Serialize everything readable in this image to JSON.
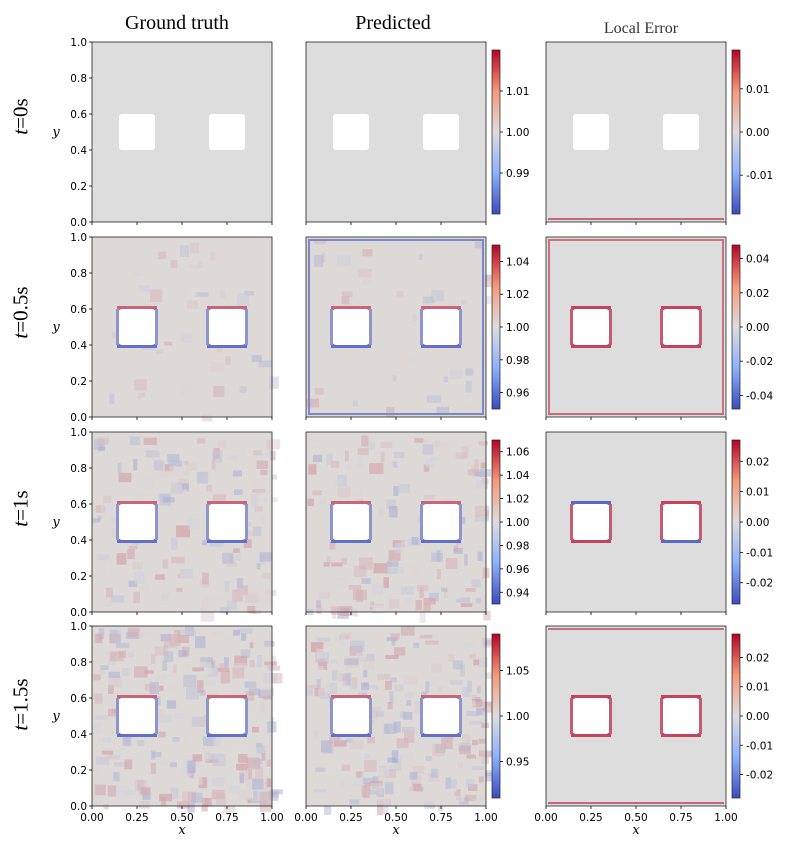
{
  "columns": {
    "ground_truth": "Ground truth",
    "predicted": "Predicted",
    "local_error": "Local Error"
  },
  "rows": [
    {
      "label": "t=0s",
      "t_var": "t",
      "t_value": "=0s"
    },
    {
      "label": "t=0.5s",
      "t_var": "t",
      "t_value": "=0.5s"
    },
    {
      "label": "t=1s",
      "t_var": "t",
      "t_value": "=1s"
    },
    {
      "label": "t=1.5s",
      "t_var": "t",
      "t_value": "=1.5s"
    }
  ],
  "axis_labels": {
    "x": "x",
    "y": "y"
  },
  "colors": {
    "low": "#3b4cc0",
    "mid": "#dddddd",
    "high": "#b40426",
    "hole": "#ffffff"
  },
  "chart_data": [
    {
      "type": "heatmap",
      "title": "Ground truth / Predicted, t=0s",
      "xlabel": "x",
      "ylabel": "y",
      "xlim": [
        0,
        1
      ],
      "ylim": [
        0,
        1
      ],
      "x_ticks": [
        "0.00",
        "0.25",
        "0.50",
        "0.75",
        "1.00"
      ],
      "y_ticks": [
        "0.0",
        "0.2",
        "0.4",
        "0.6",
        "0.8",
        "1.0"
      ],
      "obstacles": [
        {
          "x": [
            0.15,
            0.35
          ],
          "y": [
            0.4,
            0.6
          ]
        },
        {
          "x": [
            0.65,
            0.85
          ],
          "y": [
            0.4,
            0.6
          ]
        }
      ],
      "field_colorbar": {
        "range": [
          0.98,
          1.02
        ],
        "ticks": [
          "0.99",
          "1.00",
          "1.01"
        ]
      },
      "error_colorbar": {
        "range": [
          -0.019,
          0.019
        ],
        "ticks": [
          "-0.01",
          "0.00",
          "0.01"
        ]
      }
    },
    {
      "type": "heatmap",
      "title": "Ground truth / Predicted, t=0.5s",
      "xlabel": "x",
      "ylabel": "y",
      "xlim": [
        0,
        1
      ],
      "ylim": [
        0,
        1
      ],
      "x_ticks": [
        "0.00",
        "0.25",
        "0.50",
        "0.75",
        "1.00"
      ],
      "y_ticks": [
        "0.0",
        "0.2",
        "0.4",
        "0.6",
        "0.8",
        "1.0"
      ],
      "obstacles": [
        {
          "x": [
            0.15,
            0.35
          ],
          "y": [
            0.4,
            0.6
          ]
        },
        {
          "x": [
            0.65,
            0.85
          ],
          "y": [
            0.4,
            0.6
          ]
        }
      ],
      "field_colorbar": {
        "range": [
          0.95,
          1.05
        ],
        "ticks": [
          "0.96",
          "0.98",
          "1.00",
          "1.02",
          "1.04"
        ]
      },
      "error_colorbar": {
        "range": [
          -0.048,
          0.048
        ],
        "ticks": [
          "-0.04",
          "-0.02",
          "0.00",
          "0.02",
          "0.04"
        ]
      }
    },
    {
      "type": "heatmap",
      "title": "Ground truth / Predicted, t=1s",
      "xlabel": "x",
      "ylabel": "y",
      "xlim": [
        0,
        1
      ],
      "ylim": [
        0,
        1
      ],
      "x_ticks": [
        "0.00",
        "0.25",
        "0.50",
        "0.75",
        "1.00"
      ],
      "y_ticks": [
        "0.0",
        "0.2",
        "0.4",
        "0.6",
        "0.8",
        "1.0"
      ],
      "obstacles": [
        {
          "x": [
            0.15,
            0.35
          ],
          "y": [
            0.4,
            0.6
          ]
        },
        {
          "x": [
            0.65,
            0.85
          ],
          "y": [
            0.4,
            0.6
          ]
        }
      ],
      "field_colorbar": {
        "range": [
          0.93,
          1.07
        ],
        "ticks": [
          "0.94",
          "0.96",
          "0.98",
          "1.00",
          "1.02",
          "1.04",
          "1.06"
        ]
      },
      "error_colorbar": {
        "range": [
          -0.027,
          0.027
        ],
        "ticks": [
          "-0.02",
          "-0.01",
          "0.00",
          "0.01",
          "0.02"
        ]
      }
    },
    {
      "type": "heatmap",
      "title": "Ground truth / Predicted, t=1.5s",
      "xlabel": "x",
      "ylabel": "y",
      "xlim": [
        0,
        1
      ],
      "ylim": [
        0,
        1
      ],
      "x_ticks": [
        "0.00",
        "0.25",
        "0.50",
        "0.75",
        "1.00"
      ],
      "y_ticks": [
        "0.0",
        "0.2",
        "0.4",
        "0.6",
        "0.8",
        "1.0"
      ],
      "obstacles": [
        {
          "x": [
            0.15,
            0.35
          ],
          "y": [
            0.4,
            0.6
          ]
        },
        {
          "x": [
            0.65,
            0.85
          ],
          "y": [
            0.4,
            0.6
          ]
        }
      ],
      "field_colorbar": {
        "range": [
          0.91,
          1.09
        ],
        "ticks": [
          "0.95",
          "1.00",
          "1.05"
        ]
      },
      "error_colorbar": {
        "range": [
          -0.028,
          0.028
        ],
        "ticks": [
          "-0.02",
          "-0.01",
          "0.00",
          "0.01",
          "0.02"
        ]
      }
    }
  ]
}
